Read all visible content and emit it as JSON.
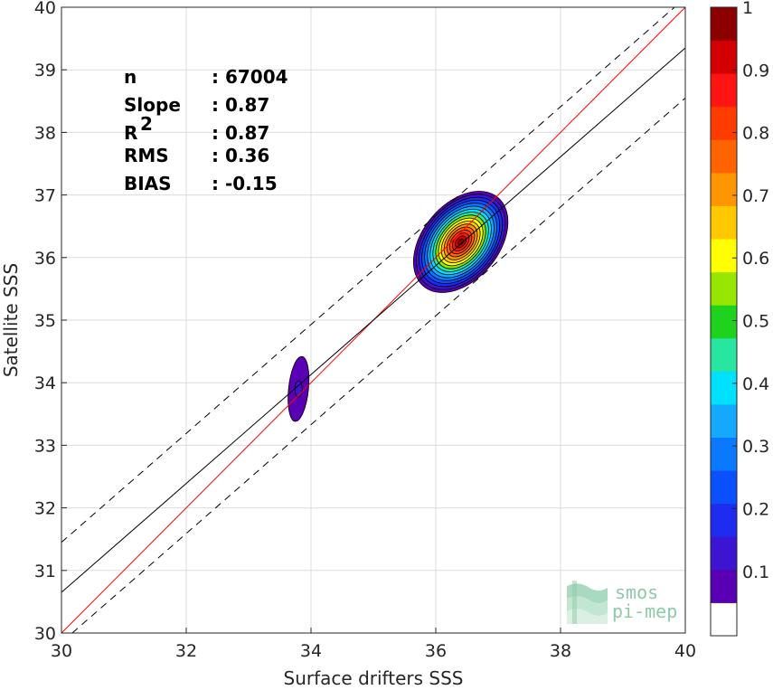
{
  "chart_data": {
    "type": "scatter",
    "subtype": "2d-density-contour",
    "xlabel": "Surface drifters SSS",
    "ylabel": "Satellite SSS",
    "xlim": [
      30,
      40
    ],
    "ylim": [
      30,
      40
    ],
    "xticks": [
      30,
      32,
      34,
      36,
      38,
      40
    ],
    "yticks": [
      30,
      31,
      32,
      33,
      34,
      35,
      36,
      37,
      38,
      39,
      40
    ],
    "grid": true,
    "stats": [
      {
        "label": "n",
        "value": ": 67004"
      },
      {
        "label": "Slope",
        "value": ": 0.87"
      },
      {
        "label": "R",
        "sup": "2",
        "value": ": 0.87"
      },
      {
        "label": "RMS",
        "value": ": 0.36"
      },
      {
        "label": "BIAS",
        "value": ": -0.15"
      }
    ],
    "lines": [
      {
        "kind": "one-to-one",
        "color": "#ff0000",
        "slope": 1,
        "intercept": 0
      },
      {
        "kind": "regression",
        "color": "#000000",
        "slope": 0.87,
        "intercept": 4.55
      },
      {
        "kind": "upper-bound",
        "color": "#000000",
        "dash": true,
        "slope": 0.87,
        "intercept": 5.35
      },
      {
        "kind": "lower-bound",
        "color": "#000000",
        "dash": true,
        "slope": 0.87,
        "intercept": 3.75
      }
    ],
    "density_peaks": [
      {
        "x": 36.4,
        "y": 36.25,
        "level": 1.0
      },
      {
        "x": 33.8,
        "y": 33.9,
        "level": 0.15
      }
    ],
    "colorbar": {
      "range": [
        0,
        1
      ],
      "ticks": [
        "0.1",
        "0.2",
        "0.3",
        "0.4",
        "0.5",
        "0.6",
        "0.7",
        "0.8",
        "0.9",
        "1"
      ],
      "colors": [
        "#ffffff",
        "#5a00b4",
        "#3c14d2",
        "#1e2cf0",
        "#0a50ff",
        "#0a78ff",
        "#14a8ff",
        "#00e0ff",
        "#28e6a0",
        "#1ed21e",
        "#96e600",
        "#ffff00",
        "#ffc800",
        "#ff9600",
        "#ff6400",
        "#ff3c00",
        "#ff1414",
        "#d20000",
        "#8c0000"
      ]
    },
    "watermark": {
      "line1": "smos",
      "line2": "pi-mep"
    }
  }
}
